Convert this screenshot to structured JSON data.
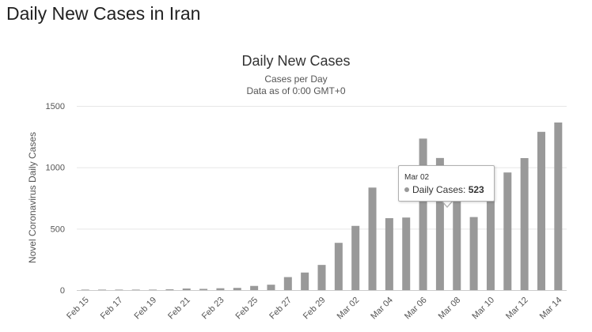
{
  "page": {
    "heading": "Daily New Cases in Iran"
  },
  "chart_data": {
    "type": "bar",
    "title": "Daily New Cases",
    "subtitle_line1": "Cases per Day",
    "subtitle_line2": "Data as of 0:00 GMT+0",
    "ylabel": "Novel Coronavirus Daily Cases",
    "xlabel": "",
    "ylim": [
      0,
      1500
    ],
    "yticks": [
      0,
      500,
      1000,
      1500
    ],
    "grid": true,
    "legend": "none",
    "bar_color": "#999999",
    "categories": [
      "Feb 15",
      "Feb 16",
      "Feb 17",
      "Feb 18",
      "Feb 19",
      "Feb 20",
      "Feb 21",
      "Feb 22",
      "Feb 23",
      "Feb 24",
      "Feb 25",
      "Feb 26",
      "Feb 27",
      "Feb 28",
      "Feb 29",
      "Mar 01",
      "Mar 02",
      "Mar 03",
      "Mar 04",
      "Mar 05",
      "Mar 06",
      "Mar 07",
      "Mar 08",
      "Mar 09",
      "Mar 10",
      "Mar 11",
      "Mar 12",
      "Mar 13",
      "Mar 14"
    ],
    "x_tick_labels": [
      "Feb 15",
      "Feb 17",
      "Feb 19",
      "Feb 21",
      "Feb 23",
      "Feb 25",
      "Feb 27",
      "Feb 29",
      "Mar 02",
      "Mar 04",
      "Mar 06",
      "Mar 08",
      "Mar 10",
      "Mar 12",
      "Mar 14"
    ],
    "series": [
      {
        "name": "Daily Cases",
        "values": [
          0,
          0,
          0,
          0,
          0,
          2,
          13,
          10,
          15,
          18,
          34,
          44,
          106,
          143,
          205,
          385,
          523,
          835,
          586,
          591,
          1234,
          1076,
          743,
          595,
          881,
          958,
          1075,
          1289,
          1365
        ]
      }
    ],
    "tooltip": {
      "date": "Mar 02",
      "label": "Daily Cases:",
      "value": "523"
    }
  }
}
